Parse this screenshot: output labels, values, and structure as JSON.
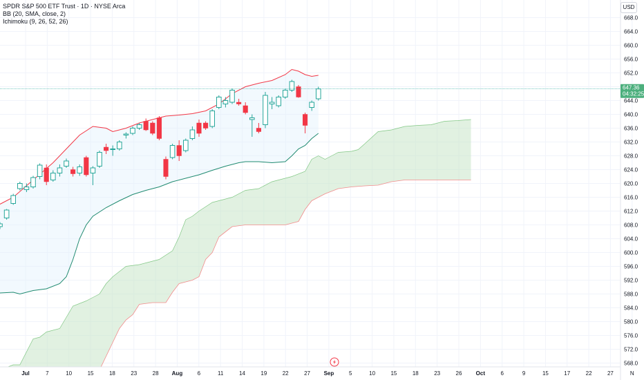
{
  "legend": {
    "title": "SPDR S&P 500 ETF Trust · 1D · NYSE Arca",
    "bb": "BB (20, SMA, close, 2)",
    "ichimoku": "Ichimoku (9, 26, 52, 26)"
  },
  "currency_button": "USD",
  "price_tags": [
    "647.36",
    "04:32:25"
  ],
  "colors": {
    "up": "#26a69a",
    "down": "#f23645",
    "bb_upper": "#f23645",
    "bb_lower": "#1f8a70",
    "bb_fill": "#e3f2fd",
    "cloud_fill": "#c8e6c9",
    "span_b": "#f28b8b",
    "price_tag": "#4caf7d"
  },
  "chart_data": {
    "type": "candlestick",
    "ylim": [
      566,
      670
    ],
    "y_ticks": [
      568,
      572,
      576,
      580,
      584,
      588,
      592,
      596,
      600,
      604,
      608,
      612,
      616,
      620,
      624,
      628,
      632,
      636,
      640,
      644,
      648,
      652,
      656,
      660,
      664,
      668
    ],
    "x_ticks": [
      "Jul",
      "7",
      "10",
      "15",
      "18",
      "23",
      "28",
      "Aug",
      "6",
      "11",
      "14",
      "19",
      "22",
      "27",
      "Sep",
      "5",
      "10",
      "15",
      "18",
      "23",
      "26",
      "Oct",
      "6",
      "9",
      "15",
      "17",
      "22",
      "27",
      "N"
    ],
    "last_price": 647.36,
    "candles": [
      {
        "o": 607.5,
        "h": 608.8,
        "l": 606.8,
        "c": 608.3
      },
      {
        "o": 610.0,
        "h": 612.6,
        "l": 609.5,
        "c": 612.3
      },
      {
        "o": 614.2,
        "h": 617.0,
        "l": 613.8,
        "c": 616.5
      },
      {
        "o": 618.5,
        "h": 620.5,
        "l": 618.0,
        "c": 620.0
      },
      {
        "o": 618.2,
        "h": 620.0,
        "l": 617.5,
        "c": 619.0
      },
      {
        "o": 619.0,
        "h": 622.2,
        "l": 618.5,
        "c": 621.7
      },
      {
        "o": 622.0,
        "h": 625.8,
        "l": 621.2,
        "c": 625.3
      },
      {
        "o": 624.5,
        "h": 625.5,
        "l": 619.5,
        "c": 620.5
      },
      {
        "o": 621.0,
        "h": 623.8,
        "l": 620.5,
        "c": 623.0
      },
      {
        "o": 623.0,
        "h": 625.5,
        "l": 622.0,
        "c": 624.5
      },
      {
        "o": 625.0,
        "h": 627.2,
        "l": 624.5,
        "c": 626.5
      },
      {
        "o": 624.0,
        "h": 624.8,
        "l": 622.0,
        "c": 622.8
      },
      {
        "o": 623.0,
        "h": 625.5,
        "l": 622.2,
        "c": 624.8
      },
      {
        "o": 627.5,
        "h": 628.0,
        "l": 622.0,
        "c": 622.5
      },
      {
        "o": 623.0,
        "h": 625.0,
        "l": 619.5,
        "c": 624.5
      },
      {
        "o": 625.0,
        "h": 629.5,
        "l": 624.5,
        "c": 629.0
      },
      {
        "o": 630.5,
        "h": 631.5,
        "l": 628.5,
        "c": 629.5
      },
      {
        "o": 630.0,
        "h": 631.0,
        "l": 628.0,
        "c": 630.0
      },
      {
        "o": 630.0,
        "h": 632.5,
        "l": 629.5,
        "c": 632.0
      },
      {
        "o": 634.0,
        "h": 634.8,
        "l": 633.0,
        "c": 634.3
      },
      {
        "o": 634.5,
        "h": 636.5,
        "l": 634.0,
        "c": 636.0
      },
      {
        "o": 636.0,
        "h": 637.5,
        "l": 635.5,
        "c": 637.0
      },
      {
        "o": 638.0,
        "h": 638.8,
        "l": 635.2,
        "c": 635.5
      },
      {
        "o": 637.5,
        "h": 638.0,
        "l": 634.0,
        "c": 634.5
      },
      {
        "o": 639.0,
        "h": 639.5,
        "l": 632.5,
        "c": 633.0
      },
      {
        "o": 627.0,
        "h": 627.8,
        "l": 621.2,
        "c": 622.0
      },
      {
        "o": 627.5,
        "h": 631.5,
        "l": 627.0,
        "c": 631.0
      },
      {
        "o": 631.0,
        "h": 632.5,
        "l": 626.5,
        "c": 628.0
      },
      {
        "o": 629.5,
        "h": 633.0,
        "l": 629.0,
        "c": 632.5
      },
      {
        "o": 633.0,
        "h": 636.5,
        "l": 632.5,
        "c": 635.5
      },
      {
        "o": 637.5,
        "h": 638.5,
        "l": 633.5,
        "c": 634.5
      },
      {
        "o": 637.5,
        "h": 638.0,
        "l": 635.5,
        "c": 636.0
      },
      {
        "o": 636.5,
        "h": 641.5,
        "l": 636.0,
        "c": 641.0
      },
      {
        "o": 642.0,
        "h": 645.5,
        "l": 641.5,
        "c": 645.0
      },
      {
        "o": 643.0,
        "h": 645.0,
        "l": 642.0,
        "c": 644.0
      },
      {
        "o": 643.5,
        "h": 647.5,
        "l": 643.0,
        "c": 647.0
      },
      {
        "o": 643.5,
        "h": 644.5,
        "l": 642.5,
        "c": 643.0
      },
      {
        "o": 642.5,
        "h": 643.5,
        "l": 640.0,
        "c": 640.5
      },
      {
        "o": 638.5,
        "h": 640.0,
        "l": 633.5,
        "c": 639.0
      },
      {
        "o": 636.0,
        "h": 637.5,
        "l": 634.5,
        "c": 635.0
      },
      {
        "o": 637.0,
        "h": 646.5,
        "l": 636.0,
        "c": 645.5
      },
      {
        "o": 643.0,
        "h": 645.0,
        "l": 641.5,
        "c": 643.5
      },
      {
        "o": 642.5,
        "h": 645.5,
        "l": 642.0,
        "c": 645.0
      },
      {
        "o": 645.0,
        "h": 647.5,
        "l": 644.5,
        "c": 647.0
      },
      {
        "o": 647.0,
        "h": 650.0,
        "l": 646.5,
        "c": 649.5
      },
      {
        "o": 648.0,
        "h": 648.5,
        "l": 644.8,
        "c": 645.0
      },
      {
        "o": 640.0,
        "h": 640.5,
        "l": 634.5,
        "c": 636.8
      },
      {
        "o": 642.0,
        "h": 644.0,
        "l": 641.0,
        "c": 643.5
      },
      {
        "o": 644.5,
        "h": 648.0,
        "l": 644.0,
        "c": 647.36
      }
    ],
    "bb_upper": [
      [
        0,
        614.0
      ],
      [
        2,
        616.0
      ],
      [
        5,
        621.0
      ],
      [
        8,
        626.0
      ],
      [
        10,
        630.0
      ],
      [
        12,
        634.0
      ],
      [
        14,
        636.5
      ],
      [
        16,
        636.0
      ],
      [
        17,
        635.0
      ],
      [
        19,
        636.0
      ],
      [
        21,
        637.5
      ],
      [
        23,
        638.5
      ],
      [
        25,
        639.5
      ],
      [
        27,
        639.8
      ],
      [
        29,
        640.2
      ],
      [
        31,
        641.0
      ],
      [
        33,
        643.0
      ],
      [
        35,
        646.0
      ],
      [
        37,
        648.0
      ],
      [
        39,
        649.0
      ],
      [
        41,
        649.8
      ],
      [
        43,
        651.5
      ],
      [
        44,
        653.0
      ],
      [
        45,
        652.5
      ],
      [
        46,
        651.5
      ],
      [
        47,
        651.0
      ],
      [
        48,
        651.3
      ]
    ],
    "bb_lower": [
      [
        -1,
        588.0
      ],
      [
        0,
        588.3
      ],
      [
        2,
        588.5
      ],
      [
        3,
        588.0
      ],
      [
        5,
        589.0
      ],
      [
        7,
        589.5
      ],
      [
        9,
        591.0
      ],
      [
        10,
        593.0
      ],
      [
        11,
        598.0
      ],
      [
        12,
        604.0
      ],
      [
        13,
        608.0
      ],
      [
        14,
        610.5
      ],
      [
        16,
        613.0
      ],
      [
        18,
        615.0
      ],
      [
        20,
        616.8
      ],
      [
        22,
        618.0
      ],
      [
        24,
        619.0
      ],
      [
        26,
        620.5
      ],
      [
        28,
        621.5
      ],
      [
        30,
        622.5
      ],
      [
        32,
        623.8
      ],
      [
        34,
        625.0
      ],
      [
        36,
        626.0
      ],
      [
        37,
        626.3
      ],
      [
        39,
        626.3
      ],
      [
        41,
        626.0
      ],
      [
        43,
        626.3
      ],
      [
        44,
        628.0
      ],
      [
        45,
        630.0
      ],
      [
        46,
        631.0
      ],
      [
        47,
        633.0
      ],
      [
        48,
        634.5
      ]
    ],
    "span_a": [
      [
        0,
        566.0
      ],
      [
        2,
        567.5
      ],
      [
        3,
        567.5
      ],
      [
        5,
        575.0
      ],
      [
        6,
        575.5
      ],
      [
        7,
        577.0
      ],
      [
        9,
        578.0
      ],
      [
        11,
        584.5
      ],
      [
        13,
        586.0
      ],
      [
        14,
        587.0
      ],
      [
        15,
        588.0
      ],
      [
        16,
        591.0
      ],
      [
        17,
        593.0
      ],
      [
        19,
        596.0
      ],
      [
        21,
        596.5
      ],
      [
        22,
        597.0
      ],
      [
        24,
        598.0
      ],
      [
        26,
        600.5
      ],
      [
        27,
        604.5
      ],
      [
        28,
        609.5
      ],
      [
        29,
        610.5
      ],
      [
        30,
        612.0
      ],
      [
        32,
        614.5
      ],
      [
        33,
        615.0
      ],
      [
        35,
        616.0
      ],
      [
        37,
        618.0
      ],
      [
        39,
        618.5
      ],
      [
        41,
        620.5
      ],
      [
        43,
        621.5
      ],
      [
        44,
        622.0
      ],
      [
        46,
        623.5
      ],
      [
        47,
        627.0
      ],
      [
        48,
        628.0
      ],
      [
        49,
        627.0
      ],
      [
        50,
        628.0
      ],
      [
        51,
        629.0
      ],
      [
        53,
        629.3
      ],
      [
        54,
        629.8
      ],
      [
        55,
        631.5
      ],
      [
        57,
        635.0
      ],
      [
        59,
        635.5
      ],
      [
        61,
        636.5
      ],
      [
        63,
        636.8
      ],
      [
        65,
        637.0
      ],
      [
        67,
        638.0
      ],
      [
        69,
        638.2
      ],
      [
        71,
        638.5
      ]
    ],
    "span_b": [
      [
        15,
        566.0
      ],
      [
        16,
        570.0
      ],
      [
        17,
        574.0
      ],
      [
        18,
        578.0
      ],
      [
        19,
        580.5
      ],
      [
        20,
        582.0
      ],
      [
        21,
        585.0
      ],
      [
        23,
        585.5
      ],
      [
        25,
        585.5
      ],
      [
        26,
        588.5
      ],
      [
        27,
        591.0
      ],
      [
        29,
        592.0
      ],
      [
        30,
        593.0
      ],
      [
        31,
        598.0
      ],
      [
        32,
        600.0
      ],
      [
        33,
        604.5
      ],
      [
        34,
        606.0
      ],
      [
        35,
        607.5
      ],
      [
        37,
        608.0
      ],
      [
        41,
        608.0
      ],
      [
        43,
        608.0
      ],
      [
        45,
        609.0
      ],
      [
        46,
        612.5
      ],
      [
        47,
        615.0
      ],
      [
        49,
        617.0
      ],
      [
        51,
        618.5
      ],
      [
        53,
        619.0
      ],
      [
        55,
        619.3
      ],
      [
        57,
        619.5
      ],
      [
        59,
        620.5
      ],
      [
        61,
        621.0
      ],
      [
        63,
        621.0
      ],
      [
        65,
        621.0
      ],
      [
        67,
        621.0
      ],
      [
        69,
        621.0
      ],
      [
        71,
        621.0
      ]
    ]
  }
}
